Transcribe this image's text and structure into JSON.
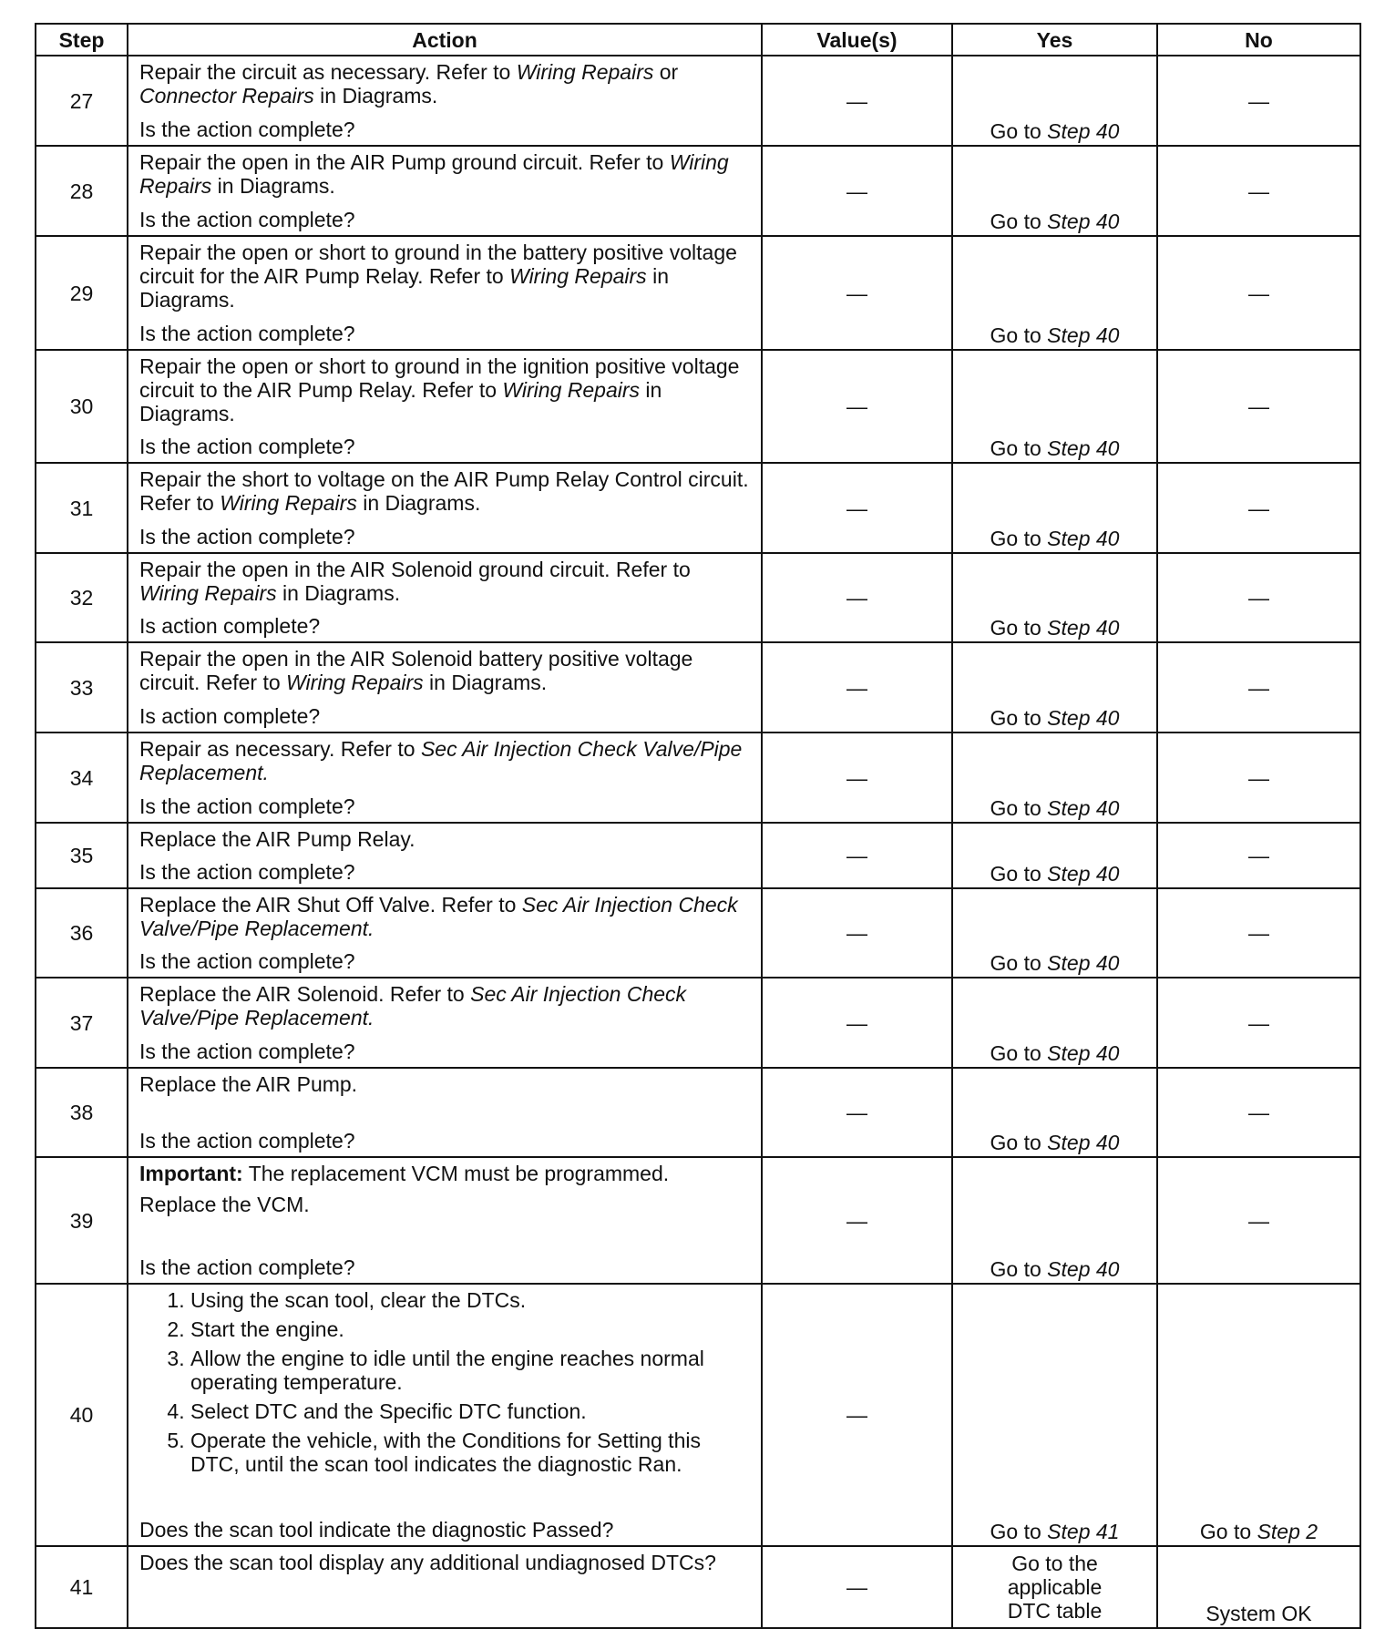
{
  "headers": [
    "Step",
    "Action",
    "Value(s)",
    "Yes",
    "No"
  ],
  "rows": [
    {
      "step": "27",
      "lines": [
        [
          {
            "t": "Repair the circuit as necessary. Refer to "
          },
          {
            "t": "Wiring Repairs",
            "i": true
          },
          {
            "t": " or "
          },
          {
            "t": "Connector Repairs",
            "i": true
          },
          {
            "t": " in Diagrams."
          }
        ]
      ],
      "question": "Is the action complete?",
      "value": "—",
      "yes": [
        {
          "t": "Go to "
        },
        {
          "t": "Step 40",
          "i": true
        }
      ],
      "no": "—"
    },
    {
      "step": "28",
      "lines": [
        [
          {
            "t": "Repair the open in the AIR Pump ground circuit. Refer to "
          },
          {
            "t": "Wiring Repairs",
            "i": true
          },
          {
            "t": " in Diagrams."
          }
        ]
      ],
      "question": "Is the action complete?",
      "value": "—",
      "yes": [
        {
          "t": "Go to "
        },
        {
          "t": "Step 40",
          "i": true
        }
      ],
      "no": "—"
    },
    {
      "step": "29",
      "lines": [
        [
          {
            "t": "Repair the open or short to ground in the battery positive voltage circuit for the AIR Pump Relay. Refer to "
          },
          {
            "t": "Wiring Repairs",
            "i": true
          },
          {
            "t": " in Diagrams."
          }
        ]
      ],
      "question": "Is the action complete?",
      "value": "—",
      "yes": [
        {
          "t": "Go to "
        },
        {
          "t": "Step 40",
          "i": true
        }
      ],
      "no": "—"
    },
    {
      "step": "30",
      "lines": [
        [
          {
            "t": "Repair the open or short to ground in the ignition positive voltage circuit to the AIR Pump Relay. Refer to "
          },
          {
            "t": "Wiring Repairs",
            "i": true
          },
          {
            "t": " in Diagrams."
          }
        ]
      ],
      "question": "Is the action complete?",
      "value": "—",
      "yes": [
        {
          "t": "Go to "
        },
        {
          "t": "Step 40",
          "i": true
        }
      ],
      "no": "—"
    },
    {
      "step": "31",
      "lines": [
        [
          {
            "t": "Repair the short to voltage on the AIR Pump Relay Control circuit. Refer to "
          },
          {
            "t": "Wiring Repairs",
            "i": true
          },
          {
            "t": " in Diagrams."
          }
        ]
      ],
      "question": "Is the action complete?",
      "value": "—",
      "yes": [
        {
          "t": "Go to "
        },
        {
          "t": "Step 40",
          "i": true
        }
      ],
      "no": "—"
    },
    {
      "step": "32",
      "lines": [
        [
          {
            "t": "Repair the open in the AIR Solenoid ground circuit. Refer to "
          },
          {
            "t": "Wiring Repairs",
            "i": true
          },
          {
            "t": " in Diagrams."
          }
        ]
      ],
      "question": "Is action complete?",
      "value": "—",
      "yes": [
        {
          "t": "Go to "
        },
        {
          "t": "Step 40",
          "i": true
        }
      ],
      "no": "—"
    },
    {
      "step": "33",
      "lines": [
        [
          {
            "t": "Repair the open in the AIR Solenoid battery positive voltage circuit. Refer to "
          },
          {
            "t": "Wiring Repairs",
            "i": true
          },
          {
            "t": " in Diagrams."
          }
        ]
      ],
      "question": "Is action complete?",
      "value": "—",
      "yes": [
        {
          "t": "Go to "
        },
        {
          "t": "Step 40",
          "i": true
        }
      ],
      "no": "—"
    },
    {
      "step": "34",
      "lines": [
        [
          {
            "t": "Repair as necessary. Refer to "
          },
          {
            "t": "Sec Air Injection Check Valve/Pipe Replacement.",
            "i": true
          }
        ]
      ],
      "question": "Is the action complete?",
      "value": "—",
      "yes": [
        {
          "t": "Go to "
        },
        {
          "t": "Step 40",
          "i": true
        }
      ],
      "no": "—"
    },
    {
      "step": "35",
      "lines": [
        [
          {
            "t": "Replace the AIR Pump Relay."
          }
        ]
      ],
      "question": "Is the action complete?",
      "value": "—",
      "yes": [
        {
          "t": "Go to "
        },
        {
          "t": "Step 40",
          "i": true
        }
      ],
      "no": "—"
    },
    {
      "step": "36",
      "lines": [
        [
          {
            "t": "Replace the AIR Shut Off Valve. Refer to "
          },
          {
            "t": "Sec Air Injection Check Valve/Pipe Replacement.",
            "i": true
          }
        ]
      ],
      "question": "Is the action complete?",
      "value": "—",
      "yes": [
        {
          "t": "Go to "
        },
        {
          "t": "Step 40",
          "i": true
        }
      ],
      "no": "—"
    },
    {
      "step": "37",
      "lines": [
        [
          {
            "t": "Replace the AIR Solenoid. Refer to "
          },
          {
            "t": "Sec Air Injection Check Valve/Pipe Replacement.",
            "i": true
          }
        ]
      ],
      "question": "Is the action complete?",
      "value": "—",
      "yes": [
        {
          "t": "Go to "
        },
        {
          "t": "Step 40",
          "i": true
        }
      ],
      "no": "—"
    },
    {
      "step": "38",
      "lines": [
        [
          {
            "t": "Replace the AIR Pump."
          }
        ]
      ],
      "question": "Is the action complete?",
      "value": "—",
      "yes": [
        {
          "t": "Go to "
        },
        {
          "t": "Step 40",
          "i": true
        }
      ],
      "no": "—"
    },
    {
      "step": "39",
      "lines": [
        [
          {
            "t": "Important:",
            "b": true
          },
          {
            "t": " The replacement VCM must be programmed."
          }
        ],
        [
          {
            "t": "Replace the VCM."
          }
        ]
      ],
      "question": "Is the action complete?",
      "value": "—",
      "yes": [
        {
          "t": "Go to "
        },
        {
          "t": "Step 40",
          "i": true
        }
      ],
      "no": "—"
    },
    {
      "step": "40",
      "list": [
        "Using the scan tool, clear the DTCs.",
        "Start the engine.",
        "Allow the engine to idle until the engine reaches normal operating temperature.",
        "Select DTC and the Specific DTC function.",
        "Operate the vehicle, with the Conditions for Setting this DTC, until the scan tool indicates the diagnostic Ran."
      ],
      "question": "Does the scan tool indicate the diagnostic Passed?",
      "value": "—",
      "yes": [
        {
          "t": "Go to "
        },
        {
          "t": "Step 41",
          "i": true
        }
      ],
      "no_rich": [
        {
          "t": "Go to "
        },
        {
          "t": "Step 2",
          "i": true
        }
      ]
    },
    {
      "step": "41",
      "lines": [
        [
          {
            "t": "Does the scan tool display any additional undiagnosed DTCs?"
          }
        ]
      ],
      "value": "—",
      "yes_block": "Go to the applicable DTC table",
      "no_bottom": "System OK"
    }
  ]
}
